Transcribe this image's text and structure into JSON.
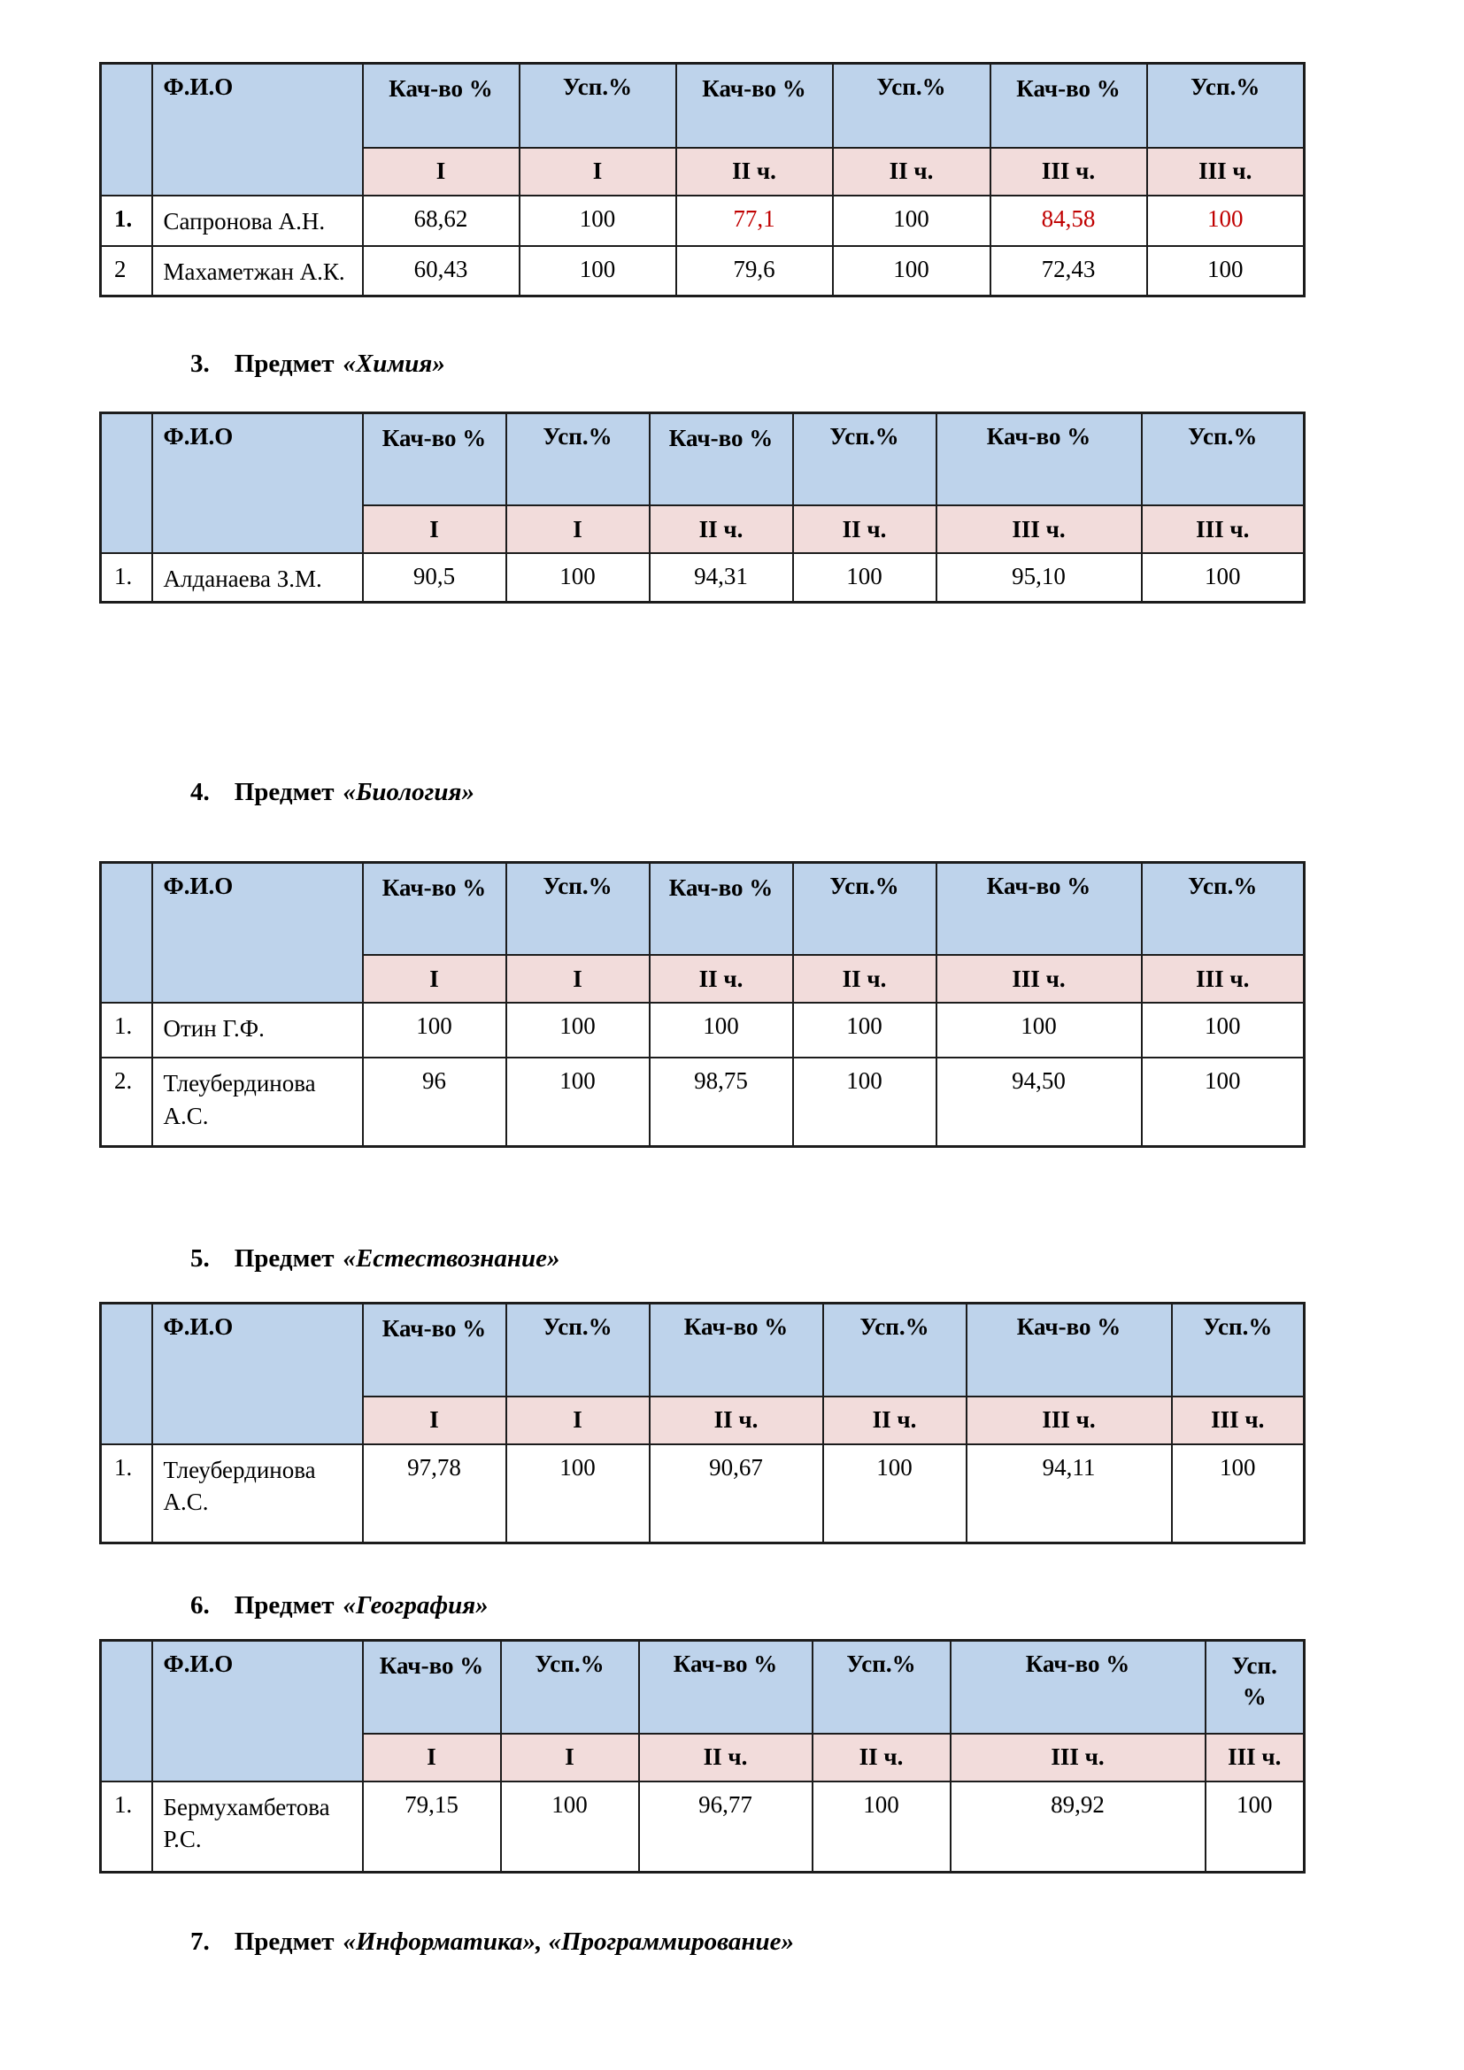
{
  "styles": {
    "header_blue": "#bed3eb",
    "subheader_pink": "#f2dcdb",
    "alert_red": "#c00000",
    "border": "#1c1c1c"
  },
  "table_header": {
    "fio": "Ф.И.О",
    "kach": "Кач-во %",
    "usp": "Усп.%",
    "usp_wrapped": "Усп. %",
    "periods": [
      "I",
      "I",
      "II ч.",
      "II ч.",
      "III ч.",
      "III ч."
    ]
  },
  "headings": [
    {
      "num": "3.",
      "word": "Предмет",
      "subject": "«Химия»"
    },
    {
      "num": "4.",
      "word": "Предмет",
      "subject": "«Биология»"
    },
    {
      "num": "5.",
      "word": "Предмет",
      "subject": "«Естествознание»"
    },
    {
      "num": "6.",
      "word": "Предмет",
      "subject": "«География»"
    },
    {
      "num": "7.",
      "word": "Предмет",
      "subject": "«Информатика», «Программирование»"
    }
  ],
  "tables": [
    {
      "subject": "upper",
      "rows": [
        {
          "num": "1.",
          "num_bold": true,
          "name": "Сапронова А.Н.",
          "values": [
            "68,62",
            "100",
            "77,1",
            "100",
            "84,58",
            "100"
          ],
          "red": [
            2,
            4,
            5
          ]
        },
        {
          "num": "2",
          "name": "Махаметжан А.К.",
          "values": [
            "60,43",
            "100",
            "79,6",
            "100",
            "72,43",
            "100"
          ],
          "red": []
        }
      ]
    },
    {
      "subject": "chemistry",
      "rows": [
        {
          "num": "1.",
          "name": "Алданаева З.М.",
          "values": [
            "90,5",
            "100",
            "94,31",
            "100",
            "95,10",
            "100"
          ],
          "red": []
        }
      ]
    },
    {
      "subject": "biology",
      "rows": [
        {
          "num": "1.",
          "name": "Отин Г.Ф.",
          "values": [
            "100",
            "100",
            "100",
            "100",
            "100",
            "100"
          ],
          "red": []
        },
        {
          "num": "2.",
          "name": "Тлеубердинова А.С.",
          "values": [
            "96",
            "100",
            "98,75",
            "100",
            "94,50",
            "100"
          ],
          "red": []
        }
      ]
    },
    {
      "subject": "natural_science",
      "rows": [
        {
          "num": "1.",
          "name": "Тлеубердинова А.С.",
          "values": [
            "97,78",
            "100",
            "90,67",
            "100",
            "94,11",
            "100"
          ],
          "red": []
        }
      ]
    },
    {
      "subject": "geography",
      "rows": [
        {
          "num": "1.",
          "name": "Бермухамбетова Р.С.",
          "values": [
            "79,15",
            "100",
            "96,77",
            "100",
            "89,92",
            "100"
          ],
          "red": []
        }
      ]
    }
  ]
}
